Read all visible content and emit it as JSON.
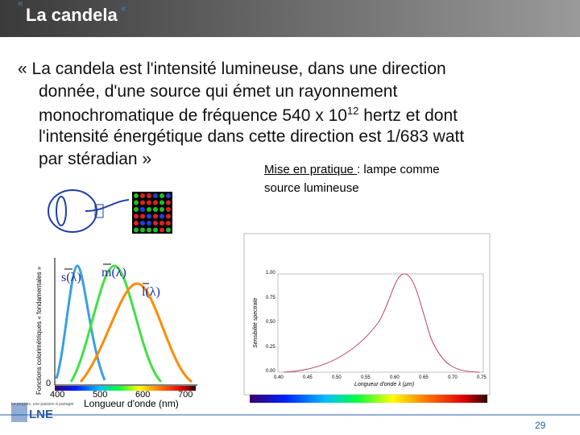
{
  "header": {
    "title": "La candela"
  },
  "body": {
    "lines": [
      [
        "« La candela est l'intensité lumineuse, dans une direction"
      ],
      [
        "donnée, d'une source qui émet un rayonnement"
      ],
      [
        "monochromatique de fréquence 540 x 10",
        "12",
        " hertz et dont"
      ],
      [
        "l'intensité énergétique dans cette direction est 1/683 watt"
      ],
      [
        "par stéradian »"
      ]
    ]
  },
  "note": {
    "link": "Mise en pratique ",
    "text": ": lampe comme",
    "text2": "source lumineuse"
  },
  "left_figure": {
    "y_label": "Fonctions colorimétriques « fondamentales »",
    "x_label": "Longueur d'onde (nm)",
    "y_tick": "0",
    "x_ticks": [
      "400",
      "500",
      "600",
      "700"
    ],
    "curves": [
      "s(λ)",
      "m(λ)",
      "l(λ)"
    ]
  },
  "right_figure": {
    "y_label": "Sensibilité spectrale",
    "x_label": "Longueur d'onde λ (µm)",
    "y_ticks": [
      "0.00",
      "0.25",
      "0.50",
      "0.75",
      "1.00"
    ],
    "x_ticks": [
      "0.40",
      "0.45",
      "0.50",
      "0.55",
      "0.60",
      "0.65",
      "0.70",
      "0.75"
    ]
  },
  "footer": {
    "logo": "LNE",
    "tagline": "Le progrès, une passion à partager",
    "page": "29"
  }
}
